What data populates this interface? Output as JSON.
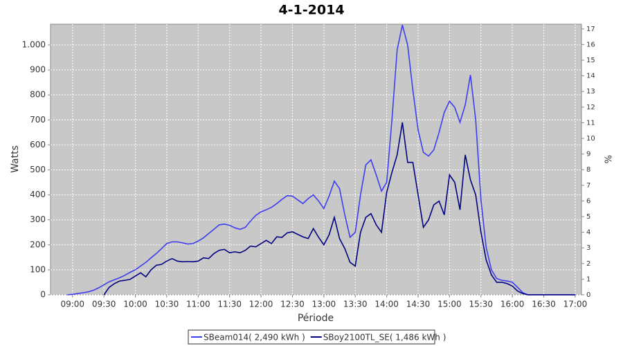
{
  "chart_data": {
    "type": "line",
    "title": "4-1-2014",
    "xlabel": "Période",
    "ylabel": "Watts",
    "y2label": "%",
    "x": [
      535,
      540,
      545,
      550,
      555,
      560,
      565,
      570,
      575,
      580,
      585,
      590,
      595,
      600,
      605,
      610,
      615,
      620,
      625,
      630,
      635,
      640,
      645,
      650,
      655,
      660,
      665,
      670,
      675,
      680,
      685,
      690,
      695,
      700,
      705,
      710,
      715,
      720,
      725,
      730,
      735,
      740,
      745,
      750,
      755,
      760,
      765,
      770,
      775,
      780,
      785,
      790,
      795,
      800,
      805,
      810,
      815,
      820,
      825,
      830,
      835,
      840,
      845,
      850,
      855,
      860,
      865,
      870,
      875,
      880,
      885,
      890,
      895,
      900,
      905,
      910,
      915,
      920,
      925,
      930,
      935,
      940,
      945,
      950,
      955,
      960,
      965,
      970,
      975,
      980,
      1020
    ],
    "series": [
      {
        "name": "SBeam014( 2,490 kWh )",
        "color": "#3c3cf0",
        "values": [
          0,
          2,
          5,
          8,
          12,
          18,
          28,
          40,
          52,
          60,
          68,
          78,
          90,
          100,
          115,
          130,
          148,
          165,
          185,
          205,
          212,
          212,
          208,
          203,
          205,
          215,
          228,
          245,
          262,
          280,
          283,
          278,
          268,
          262,
          270,
          295,
          318,
          332,
          340,
          350,
          365,
          382,
          397,
          395,
          380,
          365,
          385,
          400,
          375,
          345,
          395,
          455,
          425,
          320,
          230,
          250,
          400,
          520,
          540,
          480,
          415,
          450,
          700,
          980,
          1080,
          1000,
          820,
          660,
          570,
          555,
          580,
          650,
          730,
          775,
          750,
          690,
          760,
          880,
          700,
          380,
          190,
          100,
          65,
          58,
          55,
          50,
          30,
          8,
          0,
          0,
          0
        ]
      },
      {
        "name": "SBoy2100TL_SE( 1,486 kWh )",
        "color": "#000080",
        "values": [
          null,
          null,
          null,
          null,
          null,
          null,
          null,
          0,
          30,
          45,
          55,
          58,
          62,
          75,
          88,
          72,
          100,
          118,
          122,
          135,
          145,
          135,
          132,
          133,
          132,
          135,
          148,
          145,
          165,
          178,
          182,
          168,
          172,
          168,
          178,
          195,
          192,
          205,
          218,
          205,
          232,
          230,
          248,
          252,
          242,
          232,
          225,
          265,
          230,
          200,
          240,
          310,
          225,
          185,
          130,
          115,
          250,
          310,
          325,
          280,
          250,
          410,
          490,
          560,
          690,
          530,
          530,
          400,
          270,
          300,
          360,
          375,
          320,
          480,
          450,
          340,
          560,
          460,
          400,
          250,
          140,
          80,
          50,
          50,
          45,
          35,
          15,
          5,
          0,
          0,
          0
        ]
      }
    ],
    "xlim": [
      519,
      1026
    ],
    "xticks": [
      {
        "value": 540,
        "label": "09:00"
      },
      {
        "value": 570,
        "label": "09:30"
      },
      {
        "value": 600,
        "label": "10:00"
      },
      {
        "value": 630,
        "label": "10:30"
      },
      {
        "value": 660,
        "label": "11:00"
      },
      {
        "value": 690,
        "label": "11:30"
      },
      {
        "value": 720,
        "label": "12:00"
      },
      {
        "value": 750,
        "label": "12:30"
      },
      {
        "value": 780,
        "label": "13:00"
      },
      {
        "value": 810,
        "label": "13:30"
      },
      {
        "value": 840,
        "label": "14:00"
      },
      {
        "value": 870,
        "label": "14:30"
      },
      {
        "value": 900,
        "label": "15:00"
      },
      {
        "value": 930,
        "label": "15:30"
      },
      {
        "value": 960,
        "label": "16:00"
      },
      {
        "value": 990,
        "label": "16:30"
      },
      {
        "value": 1020,
        "label": "17:00"
      }
    ],
    "ylim": [
      0,
      1083
    ],
    "yticks": [
      0,
      100,
      200,
      300,
      400,
      500,
      600,
      700,
      800,
      900,
      {
        "value": 1000,
        "label": "1.000"
      }
    ],
    "y2lim": [
      0,
      17.3
    ],
    "y2ticks": [
      0,
      1,
      2,
      3,
      4,
      5,
      6,
      7,
      8,
      9,
      10,
      11,
      12,
      13,
      14,
      15,
      16,
      17
    ],
    "grid": true,
    "legend": "bottom"
  }
}
